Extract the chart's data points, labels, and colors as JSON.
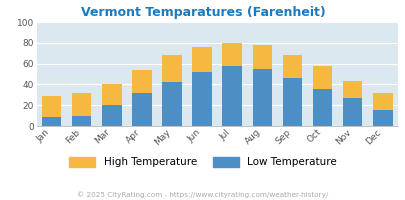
{
  "title": "Vermont Temparatures (Farenheit)",
  "months": [
    "Jan",
    "Feb",
    "Mar",
    "Apr",
    "May",
    "Jun",
    "Jul",
    "Aug",
    "Sep",
    "Oct",
    "Nov",
    "Dec"
  ],
  "low_temps": [
    9,
    10,
    20,
    32,
    42,
    52,
    58,
    55,
    46,
    36,
    27,
    15
  ],
  "high_temps": [
    29,
    32,
    40,
    54,
    68,
    76,
    80,
    78,
    68,
    58,
    43,
    32
  ],
  "low_color": "#4d8ec4",
  "high_color": "#f5b942",
  "title_color": "#1a7abf",
  "bg_color": "#ffffff",
  "plot_bg": "#dce8ef",
  "legend_bg": "#ffffff",
  "ylim": [
    0,
    100
  ],
  "yticks": [
    0,
    20,
    40,
    60,
    80,
    100
  ],
  "legend_labels": [
    "High Temperature",
    "Low Temperature"
  ],
  "footer": "© 2025 CityRating.com - https://www.cityrating.com/weather-history/",
  "footer_color": "#aaaaaa",
  "grid_color": "#ffffff"
}
